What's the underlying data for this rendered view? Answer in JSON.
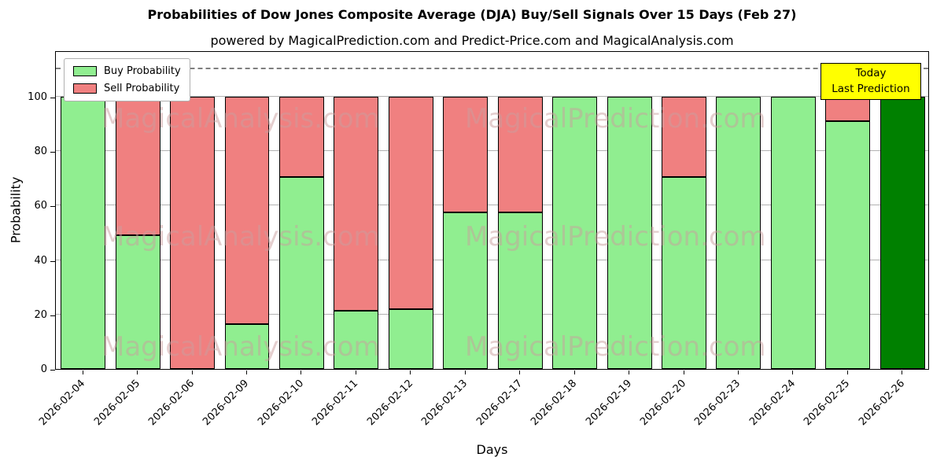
{
  "title": "Probabilities of Dow Jones Composite Average (DJA) Buy/Sell Signals Over 15 Days (Feb 27)",
  "subtitle": "powered by MagicalPrediction.com and Predict-Price.com and MagicalAnalysis.com",
  "legend": [
    {
      "label": "Buy Probability",
      "color": "#90ee90"
    },
    {
      "label": "Sell Probability",
      "color": "#f08080"
    }
  ],
  "annotation": {
    "line1": "Today",
    "line2": "Last Prediction",
    "bg_color": "#ffff00"
  },
  "watermarks": [
    "MagicalAnalysis.com",
    "MagicalPrediction.com"
  ],
  "chart_data": {
    "type": "bar",
    "stacked": true,
    "title": "Probabilities of Dow Jones Composite Average (DJA) Buy/Sell Signals Over 15 Days (Feb 27)",
    "xlabel": "Days",
    "ylabel": "Probability",
    "categories": [
      "2026-02-04",
      "2026-02-05",
      "2026-02-06",
      "2026-02-09",
      "2026-02-10",
      "2026-02-11",
      "2026-02-12",
      "2026-02-13",
      "2026-02-17",
      "2026-02-18",
      "2026-02-19",
      "2026-02-20",
      "2026-02-23",
      "2026-02-24",
      "2026-02-25",
      "2026-02-26"
    ],
    "series": [
      {
        "name": "Buy Probability",
        "color": "#90ee90",
        "values": [
          100,
          49,
          0,
          16.5,
          70.5,
          21.5,
          22,
          57.5,
          57.5,
          100,
          100,
          70.5,
          100,
          100,
          91,
          100
        ]
      },
      {
        "name": "Sell Probability",
        "color": "#f08080",
        "values": [
          0,
          51,
          100,
          83.5,
          29.5,
          78.5,
          78,
          42.5,
          42.5,
          0,
          0,
          29.5,
          0,
          0,
          9,
          0
        ]
      }
    ],
    "today_index": 15,
    "today_color": "#008000",
    "yticks": [
      0,
      20,
      40,
      60,
      80,
      100
    ],
    "ylim": [
      0,
      117
    ],
    "dashed_line_y": 110,
    "grid": true,
    "legend_position": "upper left"
  }
}
